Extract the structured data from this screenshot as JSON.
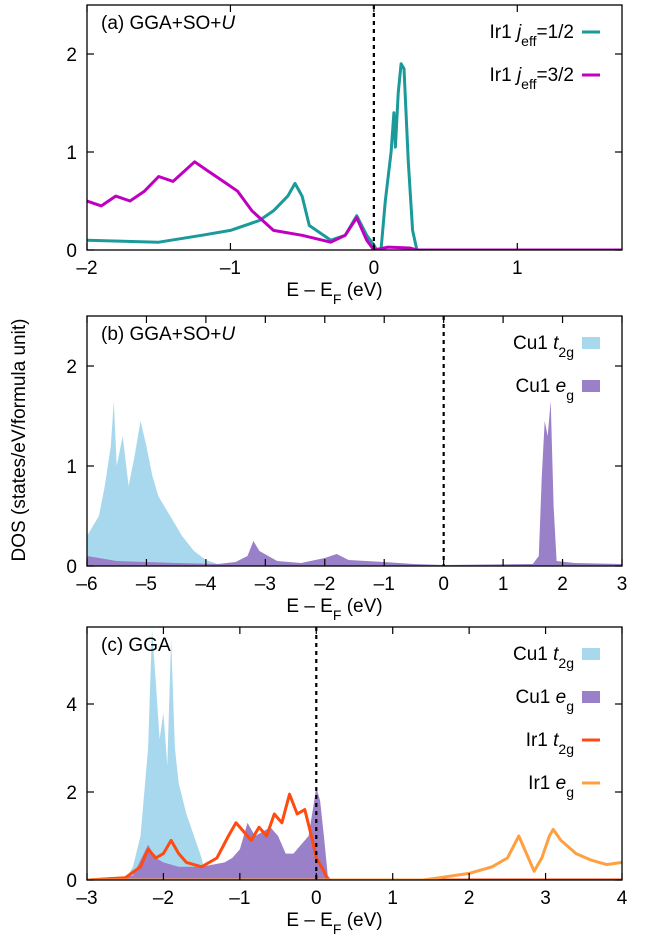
{
  "y_label": "DOS (states/eV/formula unit)",
  "chart_data": [
    {
      "type": "line",
      "title": [
        {
          "text": "(a) GGA+SO+"
        },
        {
          "text": "U",
          "style": "italic"
        }
      ],
      "x_label": [
        {
          "text": "E – E"
        },
        {
          "text": "F",
          "style": "sub"
        },
        {
          "text": " (eV)"
        }
      ],
      "xlim": [
        -2,
        1.73
      ],
      "ylim": [
        0,
        2.5
      ],
      "xticks": [
        {
          "value": -2,
          "label": "–2"
        },
        {
          "value": -1,
          "label": "–1"
        },
        0,
        1
      ],
      "yticks": [
        0,
        1,
        2
      ],
      "vline": 0,
      "legend": "top-right",
      "series": [
        {
          "name": [
            {
              "text": "Ir1 "
            },
            {
              "text": "j",
              "style": "italic"
            },
            {
              "text": "eff",
              "style": "sub"
            },
            {
              "text": "=1/2"
            }
          ],
          "color": "#1a9a9a",
          "x": [
            -2,
            -1.5,
            -1.2,
            -1.0,
            -0.8,
            -0.7,
            -0.6,
            -0.55,
            -0.5,
            -0.45,
            -0.3,
            -0.2,
            -0.12,
            -0.05,
            0,
            0.02,
            0.05,
            0.08,
            0.12,
            0.14,
            0.15,
            0.17,
            0.19,
            0.21,
            0.24,
            0.27,
            0.3,
            1.73
          ],
          "values": [
            0.1,
            0.08,
            0.15,
            0.2,
            0.3,
            0.4,
            0.55,
            0.68,
            0.55,
            0.25,
            0.1,
            0.15,
            0.35,
            0.15,
            0.05,
            0,
            0,
            0.5,
            1.0,
            1.4,
            1.05,
            1.6,
            1.9,
            1.85,
            0.9,
            0.2,
            0,
            0
          ]
        },
        {
          "name": [
            {
              "text": "Ir1 "
            },
            {
              "text": "j",
              "style": "italic"
            },
            {
              "text": "eff",
              "style": "sub"
            },
            {
              "text": "=3/2"
            }
          ],
          "color": "#c000c0",
          "x": [
            -2,
            -1.9,
            -1.8,
            -1.7,
            -1.6,
            -1.5,
            -1.4,
            -1.25,
            -1.15,
            -1.05,
            -0.95,
            -0.85,
            -0.7,
            -0.5,
            -0.3,
            -0.2,
            -0.12,
            -0.05,
            0,
            0.1,
            0.25,
            0.3,
            1.73
          ],
          "values": [
            0.5,
            0.45,
            0.55,
            0.5,
            0.6,
            0.75,
            0.7,
            0.9,
            0.8,
            0.7,
            0.6,
            0.4,
            0.2,
            0.15,
            0.08,
            0.15,
            0.33,
            0.1,
            0,
            0.03,
            0.02,
            0,
            0
          ]
        }
      ]
    },
    {
      "type": "area",
      "title": [
        {
          "text": "(b) GGA+SO+"
        },
        {
          "text": "U",
          "style": "italic"
        }
      ],
      "x_label": [
        {
          "text": "E – E"
        },
        {
          "text": "F",
          "style": "sub"
        },
        {
          "text": " (eV)"
        }
      ],
      "xlim": [
        -6,
        3
      ],
      "ylim": [
        0,
        2.5
      ],
      "xticks": [
        {
          "value": -6,
          "label": "–6"
        },
        {
          "value": -5,
          "label": "–5"
        },
        {
          "value": -4,
          "label": "–4"
        },
        {
          "value": -3,
          "label": "–3"
        },
        {
          "value": -2,
          "label": "–2"
        },
        {
          "value": -1,
          "label": "–1"
        },
        0,
        1,
        2,
        3
      ],
      "yticks": [
        0,
        1,
        2
      ],
      "vline": 0,
      "legend": "top-right",
      "series": [
        {
          "name": [
            {
              "text": "Cu1 "
            },
            {
              "text": "t",
              "style": "italic"
            },
            {
              "text": "2g",
              "style": "sub"
            }
          ],
          "color": "#a8d8ee",
          "x": [
            -6,
            -5.9,
            -5.8,
            -5.7,
            -5.6,
            -5.55,
            -5.5,
            -5.4,
            -5.3,
            -5.2,
            -5.1,
            -5.0,
            -4.9,
            -4.8,
            -4.6,
            -4.4,
            -4.2,
            -4.0,
            -3.8,
            -3.6,
            3
          ],
          "values": [
            0.3,
            0.4,
            0.5,
            0.8,
            1.2,
            1.65,
            1.0,
            1.3,
            0.8,
            1.1,
            1.45,
            1.2,
            0.9,
            0.7,
            0.5,
            0.3,
            0.15,
            0.06,
            0.02,
            0,
            0
          ]
        },
        {
          "name": [
            {
              "text": "Cu1 "
            },
            {
              "text": "e",
              "style": "italic"
            },
            {
              "text": "g",
              "style": "sub"
            }
          ],
          "color": "#9a80c8",
          "x": [
            -6,
            -5.5,
            -4.5,
            -3.8,
            -3.5,
            -3.3,
            -3.2,
            -3.1,
            -2.8,
            -2.4,
            -2.0,
            -1.8,
            -1.6,
            -1.0,
            -0.5,
            0,
            1.5,
            1.6,
            1.65,
            1.7,
            1.75,
            1.8,
            1.85,
            1.9,
            2.2,
            3
          ],
          "values": [
            0.1,
            0.05,
            0.03,
            0.02,
            0.04,
            0.1,
            0.25,
            0.15,
            0.05,
            0.03,
            0.08,
            0.12,
            0.06,
            0.04,
            0.02,
            0.01,
            0.02,
            0.1,
            0.9,
            1.45,
            1.3,
            1.65,
            0.6,
            0.05,
            0.03,
            0.02
          ]
        }
      ]
    },
    {
      "type": "line",
      "title": [
        {
          "text": "(c) GGA"
        }
      ],
      "x_label": [
        {
          "text": "E – E"
        },
        {
          "text": "F",
          "style": "sub"
        },
        {
          "text": " (eV)"
        }
      ],
      "xlim": [
        -3,
        4
      ],
      "ylim": [
        0,
        5.75
      ],
      "xticks": [
        {
          "value": -3,
          "label": "–3"
        },
        {
          "value": -2,
          "label": "–2"
        },
        {
          "value": -1,
          "label": "–1"
        },
        0,
        1,
        2,
        3,
        4
      ],
      "yticks": [
        0,
        2,
        4
      ],
      "vline": 0,
      "legend": "top-right",
      "series": [
        {
          "type": "area",
          "name": [
            {
              "text": "Cu1 "
            },
            {
              "text": "t",
              "style": "italic"
            },
            {
              "text": "2g",
              "style": "sub"
            }
          ],
          "color": "#a8d8ee",
          "x": [
            -3,
            -2.5,
            -2.4,
            -2.3,
            -2.2,
            -2.15,
            -2.1,
            -2.05,
            -2.0,
            -1.95,
            -1.9,
            -1.85,
            -1.8,
            -1.7,
            -1.6,
            -1.5,
            -1.45,
            -1.4,
            4
          ],
          "values": [
            0,
            0,
            0.3,
            1.0,
            3.0,
            5.7,
            4.5,
            3.2,
            3.8,
            2.6,
            5.5,
            3.0,
            2.2,
            1.5,
            1.0,
            0.5,
            0.1,
            0,
            0
          ]
        },
        {
          "type": "area",
          "name": [
            {
              "text": "Cu1 "
            },
            {
              "text": "e",
              "style": "italic"
            },
            {
              "text": "g",
              "style": "sub"
            }
          ],
          "color": "#9a80c8",
          "x": [
            -3,
            -2.4,
            -2.2,
            -2.1,
            -2.0,
            -1.8,
            -1.5,
            -1.2,
            -1.1,
            -1.0,
            -0.9,
            -0.8,
            -0.7,
            -0.6,
            -0.5,
            -0.4,
            -0.3,
            -0.2,
            -0.1,
            0,
            0.05,
            0.1,
            0.15,
            0.2,
            4
          ],
          "values": [
            0,
            0.1,
            0.8,
            0.5,
            0.4,
            0.3,
            0.3,
            0.4,
            0.5,
            0.7,
            1.3,
            1.0,
            1.1,
            1.2,
            1.0,
            0.6,
            0.6,
            0.8,
            1.0,
            2.1,
            1.8,
            1.0,
            0.1,
            0,
            0
          ]
        },
        {
          "type": "line",
          "name": [
            {
              "text": "Ir1 "
            },
            {
              "text": "t",
              "style": "italic"
            },
            {
              "text": "2g",
              "style": "sub"
            }
          ],
          "color": "#ff4a10",
          "x": [
            -3,
            -2.5,
            -2.3,
            -2.2,
            -2.1,
            -2.0,
            -1.9,
            -1.8,
            -1.7,
            -1.5,
            -1.3,
            -1.15,
            -1.05,
            -0.95,
            -0.85,
            -0.75,
            -0.65,
            -0.55,
            -0.45,
            -0.35,
            -0.25,
            -0.15,
            -0.05,
            0,
            0.1,
            0.15,
            4
          ],
          "values": [
            0,
            0.05,
            0.3,
            0.7,
            0.5,
            0.6,
            0.9,
            0.6,
            0.4,
            0.3,
            0.5,
            1.0,
            1.3,
            1.1,
            0.9,
            1.2,
            1.0,
            1.5,
            1.3,
            1.95,
            1.5,
            1.6,
            0.9,
            0.5,
            0.2,
            0,
            0
          ]
        },
        {
          "type": "line",
          "name": [
            {
              "text": "Ir1 "
            },
            {
              "text": "e",
              "style": "italic"
            },
            {
              "text": "g",
              "style": "sub"
            }
          ],
          "color": "#ffa040",
          "x": [
            -3,
            1.4,
            1.6,
            2.0,
            2.3,
            2.5,
            2.65,
            2.75,
            2.85,
            2.95,
            3.05,
            3.1,
            3.2,
            3.4,
            3.6,
            3.8,
            4
          ],
          "values": [
            0,
            0,
            0.05,
            0.15,
            0.3,
            0.5,
            1.0,
            0.6,
            0.2,
            0.5,
            1.0,
            1.15,
            0.9,
            0.6,
            0.45,
            0.35,
            0.4
          ]
        }
      ]
    }
  ]
}
